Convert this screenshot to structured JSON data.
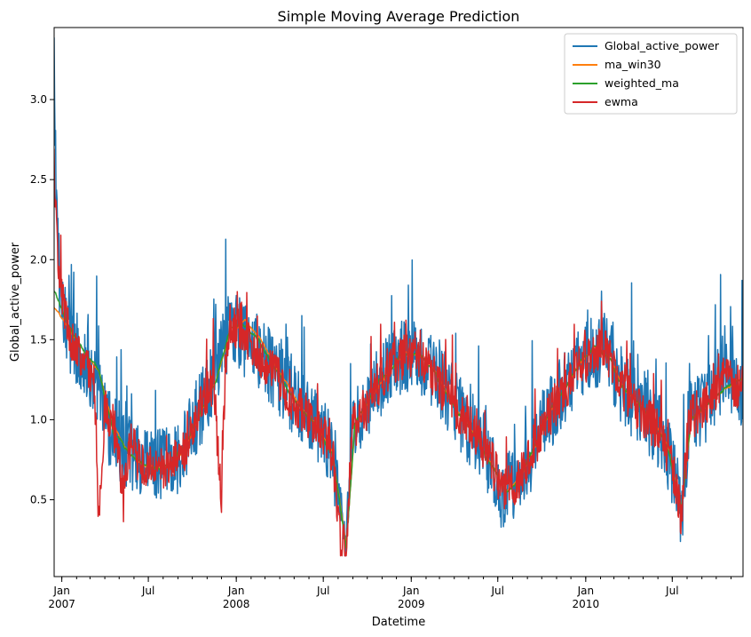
{
  "chart_data": {
    "type": "line",
    "title": "Simple Moving Average Prediction",
    "xlabel": "Datetime",
    "ylabel": "Global_active_power",
    "x_range": [
      "2006-12-16",
      "2010-11-26"
    ],
    "ylim": [
      0.02,
      3.45
    ],
    "y_ticks": [
      0.5,
      1.0,
      1.5,
      2.0,
      2.5,
      3.0
    ],
    "y_tick_labels": [
      "0.5",
      "1.0",
      "1.5",
      "2.0",
      "2.5",
      "3.0"
    ],
    "x_ticks": [
      {
        "date": "2007-01-01",
        "label": "Jan",
        "label2": "2007"
      },
      {
        "date": "2007-07-01",
        "label": "Jul",
        "label2": ""
      },
      {
        "date": "2008-01-01",
        "label": "Jan",
        "label2": "2008"
      },
      {
        "date": "2008-07-01",
        "label": "Jul",
        "label2": ""
      },
      {
        "date": "2009-01-01",
        "label": "Jan",
        "label2": "2009"
      },
      {
        "date": "2009-07-01",
        "label": "Jul",
        "label2": ""
      },
      {
        "date": "2010-01-01",
        "label": "Jan",
        "label2": "2010"
      },
      {
        "date": "2010-07-01",
        "label": "Jul",
        "label2": ""
      }
    ],
    "grid": false,
    "legend_position": "upper-right",
    "series": [
      {
        "name": "Global_active_power",
        "color": "#1f77b4",
        "style": "daily",
        "anchors": [
          [
            "2006-12-16",
            3.05
          ],
          [
            "2006-12-25",
            1.9
          ],
          [
            "2007-01-15",
            1.55
          ],
          [
            "2007-02-10",
            1.4
          ],
          [
            "2007-03-10",
            1.25
          ],
          [
            "2007-04-10",
            0.95
          ],
          [
            "2007-05-10",
            0.82
          ],
          [
            "2007-06-15",
            0.72
          ],
          [
            "2007-07-15",
            0.7
          ],
          [
            "2007-08-15",
            0.72
          ],
          [
            "2007-09-15",
            0.82
          ],
          [
            "2007-10-15",
            1.05
          ],
          [
            "2007-11-15",
            1.25
          ],
          [
            "2007-12-20",
            1.6
          ],
          [
            "2008-01-20",
            1.5
          ],
          [
            "2008-02-20",
            1.4
          ],
          [
            "2008-03-20",
            1.3
          ],
          [
            "2008-04-20",
            1.15
          ],
          [
            "2008-05-20",
            1.05
          ],
          [
            "2008-06-20",
            0.95
          ],
          [
            "2008-07-20",
            0.8
          ],
          [
            "2008-08-05",
            0.35
          ],
          [
            "2008-08-18",
            0.18
          ],
          [
            "2008-08-30",
            0.95
          ],
          [
            "2008-09-20",
            1.0
          ],
          [
            "2008-10-20",
            1.2
          ],
          [
            "2008-11-20",
            1.35
          ],
          [
            "2008-12-20",
            1.4
          ],
          [
            "2009-01-20",
            1.4
          ],
          [
            "2009-02-20",
            1.25
          ],
          [
            "2009-03-20",
            1.15
          ],
          [
            "2009-04-20",
            1.0
          ],
          [
            "2009-05-20",
            0.9
          ],
          [
            "2009-06-20",
            0.72
          ],
          [
            "2009-07-10",
            0.55
          ],
          [
            "2009-08-10",
            0.6
          ],
          [
            "2009-09-10",
            0.8
          ],
          [
            "2009-10-10",
            1.0
          ],
          [
            "2009-11-10",
            1.15
          ],
          [
            "2009-12-10",
            1.3
          ],
          [
            "2010-01-10",
            1.4
          ],
          [
            "2010-02-10",
            1.45
          ],
          [
            "2010-03-10",
            1.25
          ],
          [
            "2010-04-10",
            1.1
          ],
          [
            "2010-05-10",
            1.0
          ],
          [
            "2010-06-10",
            0.9
          ],
          [
            "2010-07-05",
            0.65
          ],
          [
            "2010-07-20",
            0.4
          ],
          [
            "2010-08-05",
            1.0
          ],
          [
            "2010-09-10",
            1.1
          ],
          [
            "2010-10-15",
            1.25
          ],
          [
            "2010-11-26",
            1.2
          ]
        ],
        "noise": 0.24
      },
      {
        "name": "ma_win30",
        "color": "#ff7f0e",
        "style": "smooth",
        "anchors": [
          [
            "2006-12-16",
            1.7
          ],
          [
            "2007-01-20",
            1.55
          ],
          [
            "2007-02-20",
            1.4
          ],
          [
            "2007-03-20",
            1.3
          ],
          [
            "2007-04-20",
            0.95
          ],
          [
            "2007-05-20",
            0.8
          ],
          [
            "2007-06-20",
            0.72
          ],
          [
            "2007-07-20",
            0.7
          ],
          [
            "2007-08-20",
            0.72
          ],
          [
            "2007-09-20",
            0.85
          ],
          [
            "2007-10-20",
            1.05
          ],
          [
            "2007-11-20",
            1.25
          ],
          [
            "2007-12-20",
            1.55
          ],
          [
            "2008-01-20",
            1.62
          ],
          [
            "2008-02-20",
            1.5
          ],
          [
            "2008-03-20",
            1.35
          ],
          [
            "2008-04-20",
            1.2
          ],
          [
            "2008-05-20",
            1.05
          ],
          [
            "2008-06-20",
            0.95
          ],
          [
            "2008-07-20",
            0.8
          ],
          [
            "2008-08-18",
            0.22
          ],
          [
            "2008-09-05",
            0.95
          ],
          [
            "2008-10-10",
            1.15
          ],
          [
            "2008-11-15",
            1.3
          ],
          [
            "2008-12-20",
            1.42
          ],
          [
            "2009-01-20",
            1.4
          ],
          [
            "2009-02-20",
            1.3
          ],
          [
            "2009-03-20",
            1.15
          ],
          [
            "2009-04-20",
            1.0
          ],
          [
            "2009-05-20",
            0.88
          ],
          [
            "2009-06-20",
            0.7
          ],
          [
            "2009-07-20",
            0.55
          ],
          [
            "2009-08-20",
            0.65
          ],
          [
            "2009-09-20",
            0.85
          ],
          [
            "2009-10-20",
            1.05
          ],
          [
            "2009-11-20",
            1.2
          ],
          [
            "2009-12-20",
            1.35
          ],
          [
            "2010-01-20",
            1.45
          ],
          [
            "2010-02-20",
            1.4
          ],
          [
            "2010-03-20",
            1.2
          ],
          [
            "2010-04-20",
            1.1
          ],
          [
            "2010-05-20",
            1.0
          ],
          [
            "2010-06-20",
            0.85
          ],
          [
            "2010-07-20",
            0.45
          ],
          [
            "2010-08-10",
            1.0
          ],
          [
            "2010-09-15",
            1.1
          ],
          [
            "2010-10-20",
            1.2
          ],
          [
            "2010-11-26",
            1.25
          ]
        ],
        "noise": 0.03
      },
      {
        "name": "weighted_ma",
        "color": "#2ca02c",
        "style": "smooth",
        "anchors": [
          [
            "2006-12-16",
            1.8
          ],
          [
            "2007-01-20",
            1.55
          ],
          [
            "2007-02-20",
            1.42
          ],
          [
            "2007-03-20",
            1.3
          ],
          [
            "2007-04-20",
            0.92
          ],
          [
            "2007-05-20",
            0.8
          ],
          [
            "2007-06-20",
            0.72
          ],
          [
            "2007-07-20",
            0.7
          ],
          [
            "2007-08-20",
            0.73
          ],
          [
            "2007-09-20",
            0.86
          ],
          [
            "2007-10-20",
            1.05
          ],
          [
            "2007-11-20",
            1.25
          ],
          [
            "2007-12-20",
            1.58
          ],
          [
            "2008-01-20",
            1.6
          ],
          [
            "2008-02-20",
            1.48
          ],
          [
            "2008-03-20",
            1.33
          ],
          [
            "2008-04-20",
            1.18
          ],
          [
            "2008-05-20",
            1.05
          ],
          [
            "2008-06-20",
            0.94
          ],
          [
            "2008-07-20",
            0.78
          ],
          [
            "2008-08-18",
            0.2
          ],
          [
            "2008-09-05",
            0.97
          ],
          [
            "2008-10-10",
            1.16
          ],
          [
            "2008-11-15",
            1.31
          ],
          [
            "2008-12-20",
            1.42
          ],
          [
            "2009-01-20",
            1.4
          ],
          [
            "2009-02-20",
            1.28
          ],
          [
            "2009-03-20",
            1.14
          ],
          [
            "2009-04-20",
            1.0
          ],
          [
            "2009-05-20",
            0.87
          ],
          [
            "2009-06-20",
            0.7
          ],
          [
            "2009-07-20",
            0.54
          ],
          [
            "2009-08-20",
            0.66
          ],
          [
            "2009-09-20",
            0.86
          ],
          [
            "2009-10-20",
            1.06
          ],
          [
            "2009-11-20",
            1.21
          ],
          [
            "2009-12-20",
            1.36
          ],
          [
            "2010-01-20",
            1.46
          ],
          [
            "2010-02-20",
            1.38
          ],
          [
            "2010-03-20",
            1.2
          ],
          [
            "2010-04-20",
            1.1
          ],
          [
            "2010-05-20",
            1.0
          ],
          [
            "2010-06-20",
            0.84
          ],
          [
            "2010-07-20",
            0.44
          ],
          [
            "2010-08-10",
            1.0
          ],
          [
            "2010-09-15",
            1.1
          ],
          [
            "2010-10-20",
            1.2
          ],
          [
            "2010-11-26",
            1.25
          ]
        ],
        "noise": 0.05
      },
      {
        "name": "ewma",
        "color": "#d62728",
        "style": "daily",
        "anchors": [
          [
            "2006-12-16",
            2.6
          ],
          [
            "2006-12-25",
            1.9
          ],
          [
            "2007-01-15",
            1.55
          ],
          [
            "2007-02-10",
            1.4
          ],
          [
            "2007-03-10",
            1.25
          ],
          [
            "2007-03-20",
            0.35
          ],
          [
            "2007-04-01",
            1.1
          ],
          [
            "2007-04-25",
            0.9
          ],
          [
            "2007-05-10",
            0.5
          ],
          [
            "2007-05-25",
            0.85
          ],
          [
            "2007-06-15",
            0.72
          ],
          [
            "2007-07-15",
            0.7
          ],
          [
            "2007-08-15",
            0.72
          ],
          [
            "2007-09-15",
            0.82
          ],
          [
            "2007-10-15",
            1.05
          ],
          [
            "2007-11-15",
            1.25
          ],
          [
            "2007-12-01",
            0.45
          ],
          [
            "2007-12-10",
            1.4
          ],
          [
            "2007-12-20",
            1.6
          ],
          [
            "2008-01-20",
            1.5
          ],
          [
            "2008-02-20",
            1.4
          ],
          [
            "2008-03-20",
            1.3
          ],
          [
            "2008-04-20",
            1.15
          ],
          [
            "2008-05-20",
            1.05
          ],
          [
            "2008-06-20",
            0.95
          ],
          [
            "2008-07-20",
            0.8
          ],
          [
            "2008-08-05",
            0.25
          ],
          [
            "2008-08-18",
            0.18
          ],
          [
            "2008-08-30",
            0.95
          ],
          [
            "2008-09-20",
            1.0
          ],
          [
            "2008-10-20",
            1.2
          ],
          [
            "2008-11-20",
            1.35
          ],
          [
            "2008-12-20",
            1.4
          ],
          [
            "2009-01-20",
            1.4
          ],
          [
            "2009-02-20",
            1.25
          ],
          [
            "2009-03-20",
            1.15
          ],
          [
            "2009-04-20",
            1.0
          ],
          [
            "2009-05-20",
            0.9
          ],
          [
            "2009-06-20",
            0.72
          ],
          [
            "2009-07-10",
            0.55
          ],
          [
            "2009-08-10",
            0.6
          ],
          [
            "2009-09-10",
            0.8
          ],
          [
            "2009-10-10",
            1.0
          ],
          [
            "2009-11-10",
            1.15
          ],
          [
            "2009-12-10",
            1.3
          ],
          [
            "2010-01-10",
            1.4
          ],
          [
            "2010-02-10",
            1.45
          ],
          [
            "2010-03-10",
            1.25
          ],
          [
            "2010-04-10",
            1.1
          ],
          [
            "2010-05-10",
            1.0
          ],
          [
            "2010-06-10",
            0.9
          ],
          [
            "2010-07-05",
            0.65
          ],
          [
            "2010-07-20",
            0.38
          ],
          [
            "2010-08-05",
            1.0
          ],
          [
            "2010-09-10",
            1.1
          ],
          [
            "2010-10-15",
            1.25
          ],
          [
            "2010-11-26",
            1.2
          ]
        ],
        "noise": 0.14
      }
    ]
  }
}
